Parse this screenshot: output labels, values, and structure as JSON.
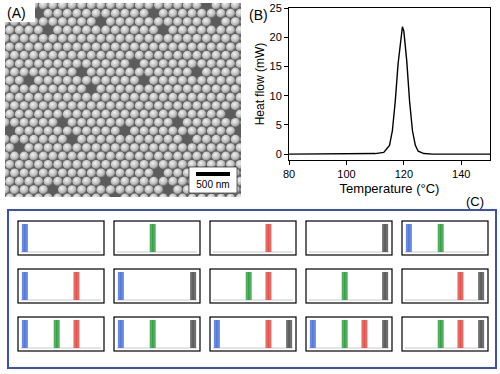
{
  "chart_data": [
    {
      "type": "image",
      "title": "(A)",
      "scale_bar": "500 nm"
    },
    {
      "type": "line",
      "title": "(B)",
      "x": [
        80,
        90,
        100,
        105,
        110,
        113,
        115,
        116,
        117,
        118,
        119,
        119.5,
        120,
        121,
        122,
        123,
        124,
        125,
        127,
        130,
        140,
        150
      ],
      "values": [
        0,
        0,
        0,
        0.05,
        0.1,
        0.3,
        1.5,
        4,
        9,
        15.5,
        20.5,
        21.8,
        21,
        16,
        9,
        4,
        1.5,
        0.5,
        0.1,
        0,
        0,
        0
      ],
      "color": "#000000",
      "xlabel": "Temperature (°C)",
      "ylabel": "Heat flow (mW)",
      "xlim": [
        80,
        150
      ],
      "ylim": [
        -1,
        25
      ],
      "xticks": [
        80,
        100,
        120,
        140
      ],
      "yticks": [
        0,
        5,
        10,
        15,
        20,
        25
      ],
      "grid": false
    },
    {
      "type": "barcode",
      "title": "(C)",
      "panels": [
        [
          "#4f75dc"
        ],
        [
          "#35a046"
        ],
        [
          "#e0504a"
        ],
        [
          "#555555"
        ],
        [
          "#4f75dc",
          "#35a046"
        ],
        [
          "#4f75dc",
          "#e0504a"
        ],
        [
          "#4f75dc",
          "#555555"
        ],
        [
          "#35a046",
          "#e0504a"
        ],
        [
          "#35a046",
          "#555555"
        ],
        [
          "#e0504a",
          "#555555"
        ],
        [
          "#4f75dc",
          "#35a046",
          "#e0504a"
        ],
        [
          "#4f75dc",
          "#35a046",
          "#555555"
        ],
        [
          "#4f75dc",
          "#e0504a",
          "#555555"
        ],
        [
          "#4f75dc",
          "#35a046",
          "#e0504a",
          "#555555"
        ],
        [
          "#35a046",
          "#e0504a",
          "#555555"
        ]
      ]
    }
  ]
}
